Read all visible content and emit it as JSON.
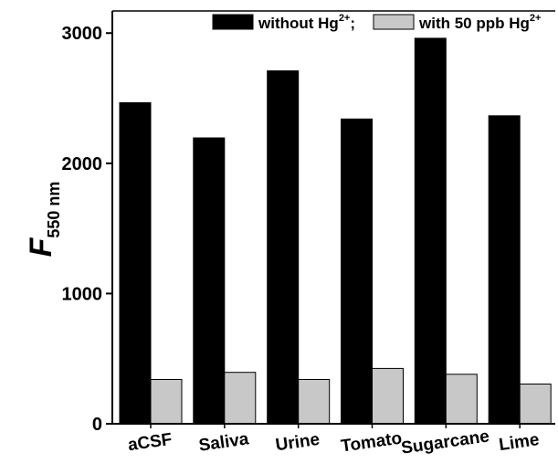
{
  "chart_data": {
    "type": "bar",
    "categories": [
      "aCSF",
      "Saliva",
      "Urine",
      "Tomato",
      "Sugarcane",
      "Lime"
    ],
    "series": [
      {
        "name": "without Hg2+",
        "values": [
          2465,
          2195,
          2710,
          2340,
          2960,
          2365
        ],
        "color": "#000000"
      },
      {
        "name": "with 50 ppb Hg2+",
        "values": [
          340,
          395,
          340,
          425,
          380,
          305
        ],
        "color": "#c8c8c8"
      }
    ],
    "ylim": [
      0,
      3170
    ],
    "yticks": [
      0,
      1000,
      2000,
      3000
    ],
    "ylabel": {
      "main": "F",
      "sub": "550 nm"
    },
    "legend": {
      "position": "top-right",
      "items": [
        {
          "main": "without Hg",
          "sup": "2+",
          "suffix": ";"
        },
        {
          "main": "with 50 ppb Hg",
          "sup": "2+",
          "suffix": ""
        }
      ]
    },
    "grid": false
  }
}
